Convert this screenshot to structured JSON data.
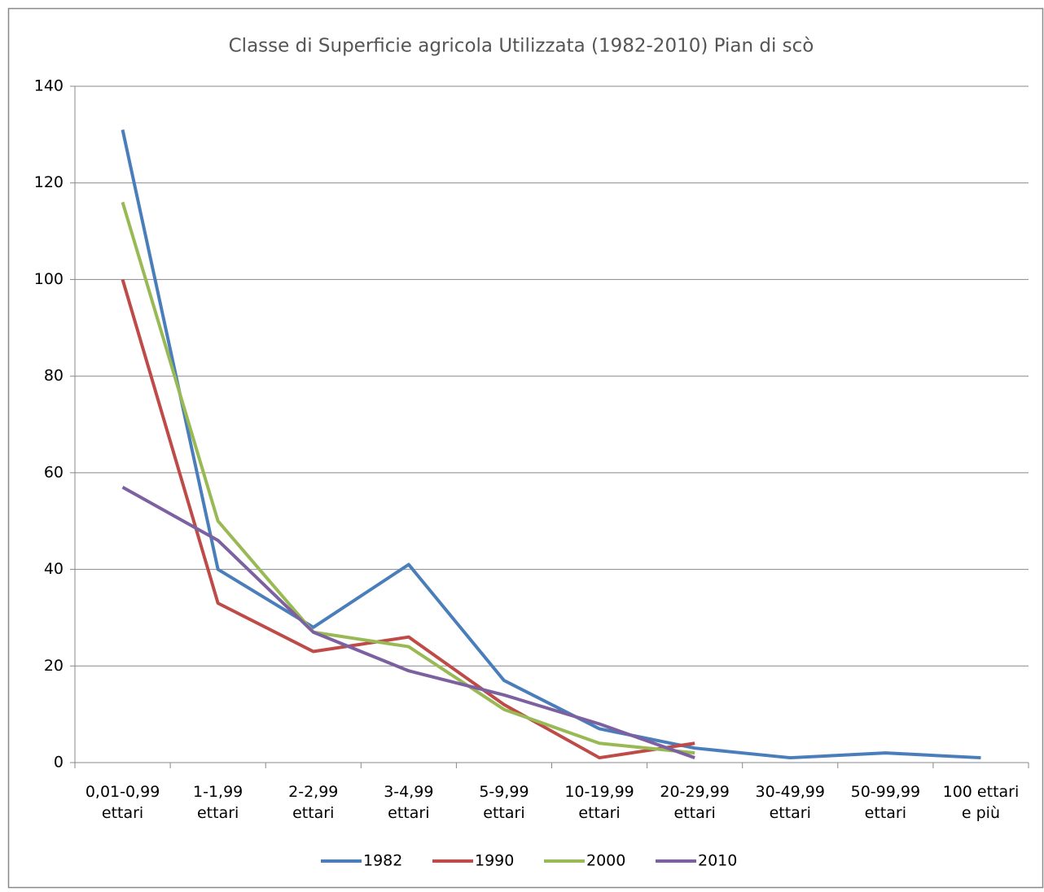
{
  "chart_data": {
    "type": "line",
    "title": "Classe di Superficie agricola Utilizzata (1982-2010) Pian di scò",
    "categories": [
      [
        "0,01-0,99",
        "ettari"
      ],
      [
        "1-1,99",
        "ettari"
      ],
      [
        "2-2,99",
        "ettari"
      ],
      [
        "3-4,99",
        "ettari"
      ],
      [
        "5-9,99",
        "ettari"
      ],
      [
        "10-19,99",
        "ettari"
      ],
      [
        "20-29,99",
        "ettari"
      ],
      [
        "30-49,99",
        "ettari"
      ],
      [
        "50-99,99",
        "ettari"
      ],
      [
        "100 ettari",
        "e più"
      ]
    ],
    "series": [
      {
        "name": "1982",
        "color": "#4a7ebb",
        "values": [
          131,
          40,
          28,
          41,
          17,
          7,
          3,
          1,
          2,
          1
        ]
      },
      {
        "name": "1990",
        "color": "#be4b48",
        "values": [
          100,
          33,
          23,
          26,
          12,
          1,
          4,
          null,
          null,
          null
        ]
      },
      {
        "name": "2000",
        "color": "#98b954",
        "values": [
          116,
          50,
          27,
          24,
          11,
          4,
          2,
          null,
          null,
          null
        ]
      },
      {
        "name": "2010",
        "color": "#7d60a0",
        "values": [
          57,
          46,
          27,
          19,
          14,
          8,
          1,
          null,
          null,
          null
        ]
      }
    ],
    "ylim": [
      0,
      140
    ],
    "yticks": [
      0,
      20,
      40,
      60,
      80,
      100,
      120,
      140
    ],
    "grid": true,
    "legend": "bottom"
  }
}
